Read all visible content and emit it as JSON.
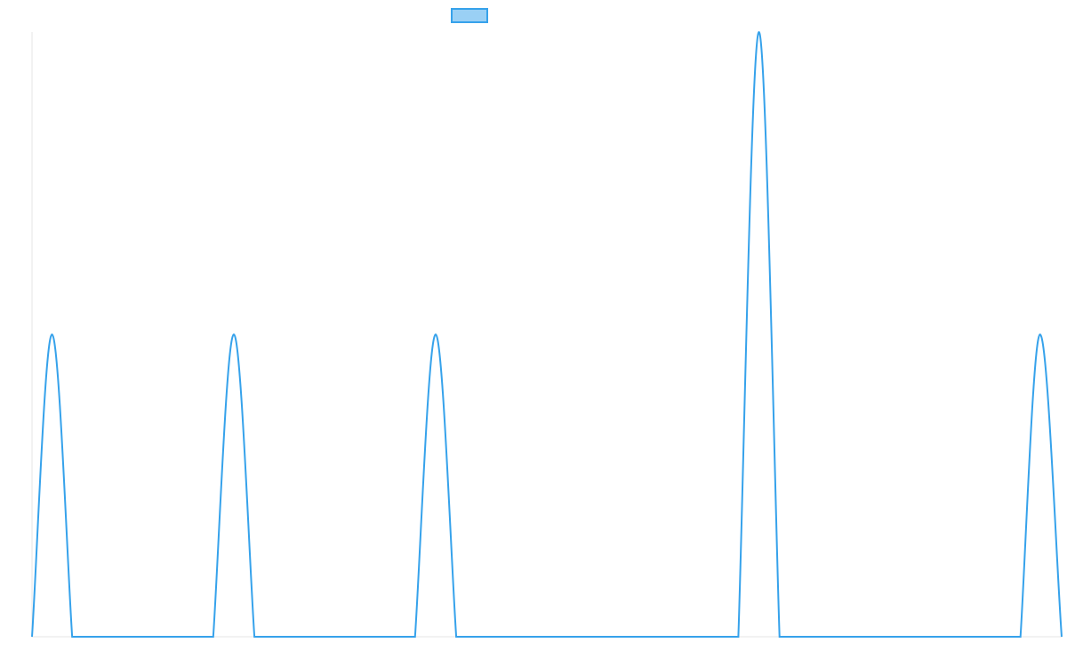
{
  "chart_data": {
    "type": "line",
    "legend": {
      "position": "top-center",
      "entries": [
        {
          "name": "",
          "color": "#36a2eb",
          "fill": "#9ad0f5"
        }
      ]
    },
    "grid": false,
    "xlim": [
      0,
      100
    ],
    "ylim": [
      0,
      2
    ],
    "series": [
      {
        "name": "",
        "color": "#36a2eb",
        "x": [
          0,
          1.94,
          3.9,
          17.6,
          19.6,
          21.6,
          37.2,
          39.2,
          41.2,
          68.6,
          70.6,
          72.6,
          96.0,
          97.9,
          100
        ],
        "y": [
          0,
          1,
          0,
          0,
          1,
          0,
          0,
          1,
          0,
          0,
          2,
          0,
          0,
          1,
          0
        ]
      }
    ]
  }
}
